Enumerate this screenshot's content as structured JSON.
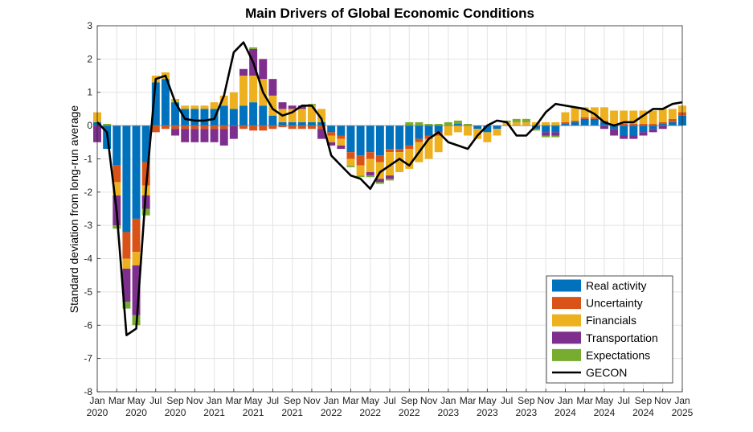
{
  "chart_data": {
    "type": "bar",
    "title": "Main Drivers of Global Economic Conditions",
    "xlabel": "",
    "ylabel": "Standard deviation from long-run average",
    "ylim": [
      -8,
      3
    ],
    "yticks": [
      "3",
      "2",
      "1",
      "0",
      "-1",
      "-2",
      "-3",
      "-4",
      "-5",
      "-6",
      "-7",
      "-8"
    ],
    "grid": true,
    "legend_position": "bottom-right",
    "stacked": true,
    "x_tick_labels": [
      {
        "month": "Jan",
        "year": "2020"
      },
      {
        "month": "Mar",
        "year": ""
      },
      {
        "month": "May",
        "year": "2020"
      },
      {
        "month": "Jul",
        "year": ""
      },
      {
        "month": "Sep",
        "year": "2020"
      },
      {
        "month": "Nov",
        "year": ""
      },
      {
        "month": "Jan",
        "year": "2021"
      },
      {
        "month": "Mar",
        "year": ""
      },
      {
        "month": "May",
        "year": "2021"
      },
      {
        "month": "Jul",
        "year": ""
      },
      {
        "month": "Sep",
        "year": "2021"
      },
      {
        "month": "Nov",
        "year": ""
      },
      {
        "month": "Jan",
        "year": "2022"
      },
      {
        "month": "Mar",
        "year": ""
      },
      {
        "month": "May",
        "year": "2022"
      },
      {
        "month": "Jul",
        "year": ""
      },
      {
        "month": "Sep",
        "year": "2022"
      },
      {
        "month": "Nov",
        "year": ""
      },
      {
        "month": "Jan",
        "year": "2023"
      },
      {
        "month": "Mar",
        "year": ""
      },
      {
        "month": "May",
        "year": "2023"
      },
      {
        "month": "Jul",
        "year": ""
      },
      {
        "month": "Sep",
        "year": "2023"
      },
      {
        "month": "Nov",
        "year": ""
      },
      {
        "month": "Jan",
        "year": "2024"
      },
      {
        "month": "Mar",
        "year": ""
      },
      {
        "month": "May",
        "year": "2024"
      },
      {
        "month": "Jul",
        "year": ""
      },
      {
        "month": "Sep",
        "year": "2024"
      },
      {
        "month": "Nov",
        "year": ""
      },
      {
        "month": "Jan",
        "year": "2025"
      }
    ],
    "categories": [
      "Jan 2020",
      "Feb 2020",
      "Mar 2020",
      "Apr 2020",
      "May 2020",
      "Jun 2020",
      "Jul 2020",
      "Aug 2020",
      "Sep 2020",
      "Oct 2020",
      "Nov 2020",
      "Dec 2020",
      "Jan 2021",
      "Feb 2021",
      "Mar 2021",
      "Apr 2021",
      "May 2021",
      "Jun 2021",
      "Jul 2021",
      "Aug 2021",
      "Sep 2021",
      "Oct 2021",
      "Nov 2021",
      "Dec 2021",
      "Jan 2022",
      "Feb 2022",
      "Mar 2022",
      "Apr 2022",
      "May 2022",
      "Jun 2022",
      "Jul 2022",
      "Aug 2022",
      "Sep 2022",
      "Oct 2022",
      "Nov 2022",
      "Dec 2022",
      "Jan 2023",
      "Feb 2023",
      "Mar 2023",
      "Apr 2023",
      "May 2023",
      "Jun 2023",
      "Jul 2023",
      "Aug 2023",
      "Sep 2023",
      "Oct 2023",
      "Nov 2023",
      "Dec 2023",
      "Jan 2024",
      "Feb 2024",
      "Mar 2024",
      "Apr 2024",
      "May 2024",
      "Jun 2024",
      "Jul 2024",
      "Aug 2024",
      "Sep 2024",
      "Oct 2024",
      "Nov 2024",
      "Dec 2024",
      "Jan 2025"
    ],
    "series": [
      {
        "name": "Real activity",
        "color": "#0072BD",
        "values": [
          0.1,
          -0.7,
          -1.2,
          -3.2,
          -2.8,
          -1.1,
          1.3,
          1.4,
          0.7,
          0.5,
          0.5,
          0.5,
          0.5,
          0.6,
          0.5,
          0.6,
          0.7,
          0.6,
          0.3,
          0.1,
          0.1,
          0.1,
          0.1,
          0.1,
          -0.2,
          -0.3,
          -0.8,
          -0.9,
          -0.8,
          -0.9,
          -0.7,
          -0.7,
          -0.6,
          -0.4,
          -0.3,
          -0.2,
          0.0,
          0.05,
          0.0,
          -0.1,
          -0.2,
          -0.1,
          0.0,
          0.0,
          0.0,
          -0.1,
          -0.2,
          -0.2,
          0.05,
          0.1,
          0.2,
          0.2,
          0.1,
          -0.1,
          -0.3,
          -0.3,
          -0.2,
          -0.1,
          0.05,
          0.1,
          0.3
        ]
      },
      {
        "name": "Uncertainty",
        "color": "#D95319",
        "values": [
          0.0,
          0.0,
          -0.5,
          -0.8,
          -1.0,
          -0.7,
          -0.2,
          -0.1,
          -0.1,
          -0.1,
          -0.1,
          -0.1,
          -0.1,
          -0.1,
          0.0,
          -0.1,
          -0.15,
          -0.15,
          -0.1,
          -0.05,
          -0.1,
          -0.1,
          -0.1,
          -0.1,
          -0.1,
          -0.1,
          -0.2,
          -0.3,
          -0.2,
          -0.2,
          -0.1,
          -0.1,
          -0.1,
          -0.1,
          -0.1,
          -0.1,
          0.0,
          0.0,
          0.0,
          0.0,
          0.0,
          0.0,
          0.0,
          0.0,
          0.0,
          0.0,
          0.0,
          0.0,
          0.05,
          0.05,
          0.05,
          0.05,
          0.05,
          0.05,
          0.05,
          0.05,
          0.05,
          0.05,
          0.05,
          0.1,
          0.1
        ]
      },
      {
        "name": "Financials",
        "color": "#EDB120",
        "values": [
          0.3,
          0.0,
          -0.4,
          -0.3,
          -0.4,
          -0.3,
          0.2,
          0.2,
          0.1,
          0.1,
          0.1,
          0.1,
          0.2,
          0.3,
          0.5,
          0.9,
          0.8,
          0.8,
          0.6,
          0.4,
          0.4,
          0.4,
          0.5,
          0.4,
          -0.2,
          -0.2,
          -0.2,
          -0.3,
          -0.4,
          -0.5,
          -0.7,
          -0.6,
          -0.6,
          -0.6,
          -0.6,
          -0.5,
          -0.3,
          -0.2,
          -0.3,
          -0.3,
          -0.3,
          -0.2,
          0.1,
          0.1,
          0.1,
          0.1,
          0.1,
          0.1,
          0.3,
          0.4,
          0.3,
          0.3,
          0.4,
          0.4,
          0.4,
          0.4,
          0.4,
          0.4,
          0.4,
          0.3,
          0.2
        ]
      },
      {
        "name": "Transportation",
        "color": "#7E2F8E",
        "values": [
          -0.5,
          0.0,
          -0.9,
          -1.0,
          -1.5,
          -0.4,
          0.0,
          0.0,
          -0.2,
          -0.4,
          -0.4,
          -0.4,
          -0.4,
          -0.5,
          -0.4,
          0.2,
          0.8,
          0.6,
          0.5,
          0.2,
          0.1,
          0.1,
          0.0,
          -0.3,
          -0.1,
          -0.1,
          0.0,
          0.0,
          -0.1,
          -0.1,
          -0.1,
          0.0,
          0.0,
          0.0,
          0.0,
          0.0,
          0.0,
          0.0,
          0.0,
          0.0,
          0.0,
          0.0,
          0.0,
          0.0,
          0.0,
          0.0,
          -0.1,
          -0.1,
          0.0,
          0.0,
          0.0,
          0.0,
          -0.1,
          -0.2,
          -0.1,
          -0.1,
          -0.1,
          -0.1,
          -0.1,
          0.0,
          0.0
        ]
      },
      {
        "name": "Expectations",
        "color": "#77AC30",
        "values": [
          0.0,
          0.05,
          -0.1,
          -0.2,
          -0.3,
          -0.2,
          0.0,
          0.0,
          0.0,
          0.0,
          0.0,
          0.0,
          0.0,
          0.0,
          0.0,
          0.0,
          0.05,
          0.0,
          0.0,
          0.0,
          0.0,
          0.0,
          0.05,
          0.0,
          0.0,
          0.0,
          -0.05,
          -0.05,
          -0.05,
          -0.05,
          -0.05,
          0.0,
          0.1,
          0.1,
          0.05,
          0.05,
          0.1,
          0.1,
          0.05,
          0.0,
          0.0,
          0.0,
          0.05,
          0.1,
          0.1,
          -0.05,
          -0.05,
          -0.05,
          0.0,
          0.0,
          0.0,
          0.0,
          0.0,
          0.0,
          0.0,
          0.0,
          0.0,
          0.0,
          0.0,
          0.0,
          0.0
        ]
      },
      {
        "name": "GECON",
        "color": "#000000",
        "type": "line",
        "values": [
          0.1,
          -0.2,
          -2.6,
          -6.3,
          -6.1,
          -1.9,
          1.4,
          1.5,
          0.7,
          0.2,
          0.15,
          0.15,
          0.2,
          0.9,
          2.2,
          2.5,
          1.9,
          1.0,
          0.5,
          0.3,
          0.4,
          0.6,
          0.6,
          0.2,
          -0.9,
          -1.2,
          -1.5,
          -1.6,
          -1.9,
          -1.4,
          -1.2,
          -1.0,
          -1.2,
          -0.8,
          -0.4,
          -0.2,
          -0.5,
          -0.6,
          -0.7,
          -0.3,
          0.0,
          0.15,
          0.1,
          -0.3,
          -0.3,
          0.0,
          0.4,
          0.65,
          0.6,
          0.55,
          0.5,
          0.35,
          0.1,
          0.0,
          0.1,
          0.1,
          0.3,
          0.5,
          0.5,
          0.65,
          0.7
        ]
      }
    ]
  }
}
